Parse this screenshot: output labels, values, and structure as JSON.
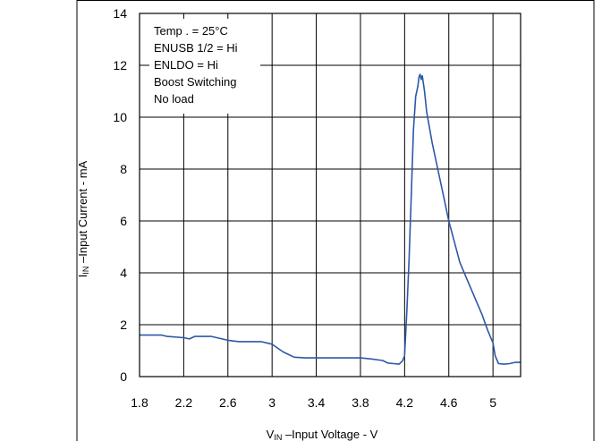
{
  "chart_data": {
    "type": "line",
    "title": "",
    "xlabel": {
      "main": "V",
      "sub": "IN",
      "rest": " –Input Voltage - V"
    },
    "ylabel": {
      "main": "I",
      "sub": "IN",
      "rest": " –Input Current - mA"
    },
    "xlim": [
      1.8,
      5.25
    ],
    "ylim": [
      0,
      14
    ],
    "grid": true,
    "xticks": [
      {
        "value": 1.8,
        "label": "1.8"
      },
      {
        "value": 2.2,
        "label": "2.2"
      },
      {
        "value": 2.6,
        "label": "2.6"
      },
      {
        "value": 3.0,
        "label": "3"
      },
      {
        "value": 3.4,
        "label": "3.4"
      },
      {
        "value": 3.8,
        "label": "3.8"
      },
      {
        "value": 4.2,
        "label": "4.2"
      },
      {
        "value": 4.6,
        "label": "4.6"
      },
      {
        "value": 5.0,
        "label": "5"
      }
    ],
    "yticks": [
      {
        "value": 0,
        "label": "0"
      },
      {
        "value": 2,
        "label": "2"
      },
      {
        "value": 4,
        "label": "4"
      },
      {
        "value": 6,
        "label": "6"
      },
      {
        "value": 8,
        "label": "8"
      },
      {
        "value": 10,
        "label": "10"
      },
      {
        "value": 12,
        "label": "12"
      },
      {
        "value": 14,
        "label": "14"
      }
    ],
    "annotation": [
      "Temp . = 25°C",
      "ENUSB 1/2 = Hi",
      "ENLDO  = Hi",
      "Boost Switching",
      "No load"
    ],
    "series": [
      {
        "color": "#2d58a6",
        "x": [
          1.8,
          2.0,
          2.05,
          2.2,
          2.25,
          2.3,
          2.45,
          2.5,
          2.6,
          2.7,
          2.8,
          2.9,
          2.95,
          3.0,
          3.05,
          3.1,
          3.15,
          3.2,
          3.3,
          3.5,
          3.7,
          3.8,
          3.9,
          4.0,
          4.05,
          4.1,
          4.15,
          4.18,
          4.2,
          4.22,
          4.24,
          4.26,
          4.28,
          4.3,
          4.32,
          4.33,
          4.34,
          4.35,
          4.36,
          4.38,
          4.4,
          4.45,
          4.5,
          4.55,
          4.6,
          4.65,
          4.7,
          4.8,
          4.9,
          4.95,
          5.0,
          5.02,
          5.05,
          5.1,
          5.15,
          5.2,
          5.25
        ],
        "y": [
          1.6,
          1.6,
          1.55,
          1.5,
          1.45,
          1.55,
          1.55,
          1.5,
          1.4,
          1.35,
          1.35,
          1.35,
          1.3,
          1.25,
          1.1,
          0.95,
          0.85,
          0.75,
          0.72,
          0.72,
          0.72,
          0.72,
          0.68,
          0.62,
          0.52,
          0.5,
          0.48,
          0.6,
          0.8,
          2.5,
          4.5,
          7.0,
          9.5,
          10.8,
          11.2,
          11.55,
          11.65,
          11.45,
          11.6,
          11.0,
          10.2,
          9.0,
          8.0,
          7.0,
          6.0,
          5.2,
          4.4,
          3.4,
          2.4,
          1.8,
          1.3,
          0.8,
          0.5,
          0.48,
          0.5,
          0.55,
          0.55
        ]
      }
    ]
  }
}
